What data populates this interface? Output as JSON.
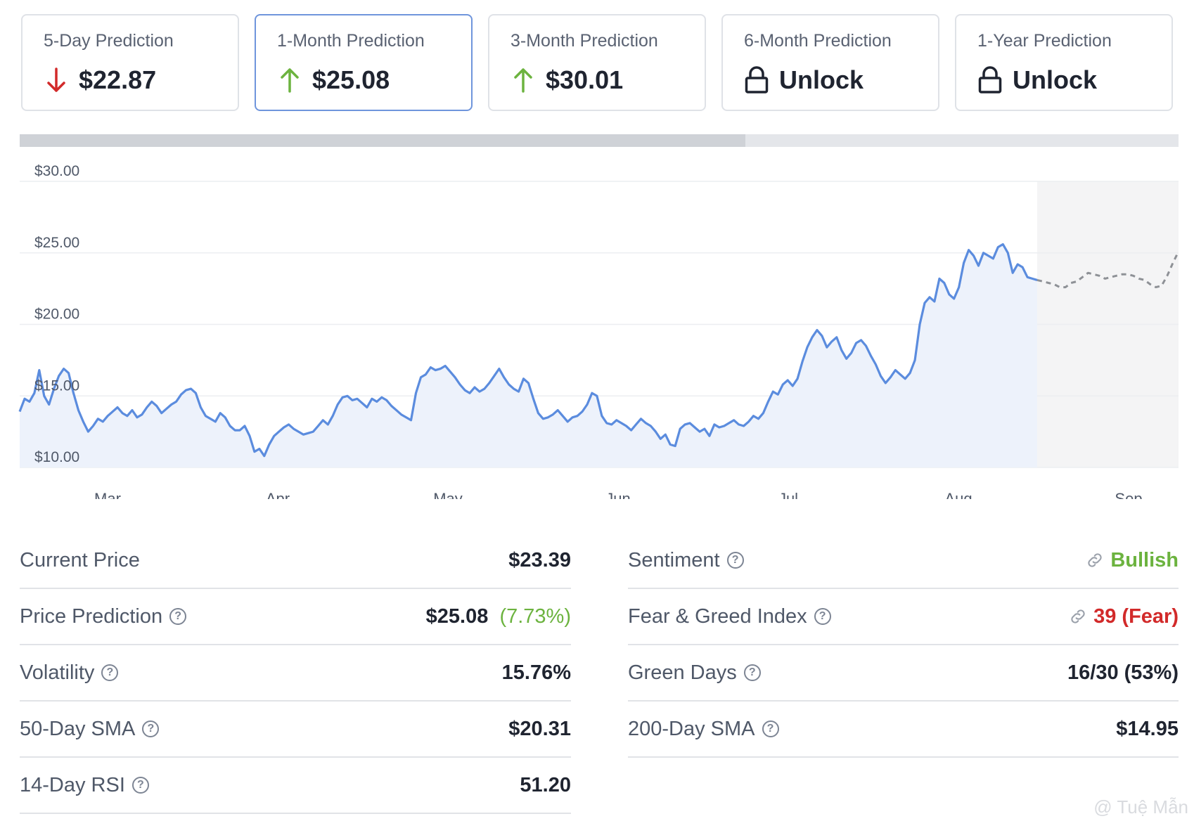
{
  "cards": [
    {
      "title": "5-Day Prediction",
      "value": "$22.87",
      "icon": "arrow-down-icon",
      "color": "#d22a2a"
    },
    {
      "title": "1-Month Prediction",
      "value": "$25.08",
      "icon": "arrow-up-icon",
      "color": "#6cb33f",
      "active": true
    },
    {
      "title": "3-Month Prediction",
      "value": "$30.01",
      "icon": "arrow-up-icon",
      "color": "#6cb33f"
    },
    {
      "title": "6-Month Prediction",
      "value": "Unlock",
      "icon": "lock-icon"
    },
    {
      "title": "1-Year Prediction",
      "value": "Unlock",
      "icon": "lock-icon"
    }
  ],
  "chart_data": {
    "type": "line",
    "ylim": [
      10,
      30
    ],
    "y_ticks": [
      "$30.00",
      "$25.00",
      "$20.00",
      "$15.00",
      "$10.00"
    ],
    "x_ticks": [
      "Mar",
      "Apr",
      "May",
      "Jun",
      "Jul",
      "Aug",
      "Sep"
    ],
    "series": [
      {
        "values": [
          13.9,
          14.8,
          14.6,
          15.2,
          16.8,
          15.0,
          14.4,
          15.5,
          16.4,
          16.9,
          16.6,
          15.2,
          14.0,
          13.2,
          12.5,
          12.9,
          13.4,
          13.2,
          13.6,
          13.9,
          14.2,
          13.8,
          13.6,
          14.0,
          13.5,
          13.7,
          14.2,
          14.6,
          14.3,
          13.8,
          14.1,
          14.4,
          14.6,
          15.1,
          15.4,
          15.5,
          15.2,
          14.2,
          13.6,
          13.4,
          13.2,
          13.8,
          13.5,
          12.9,
          12.6,
          12.6,
          12.9,
          12.2,
          11.1,
          11.3,
          10.8,
          11.6,
          12.2,
          12.5,
          12.8,
          13.0,
          12.7,
          12.5,
          12.3,
          12.4,
          12.5,
          12.9,
          13.3,
          13.0,
          13.6,
          14.4,
          14.9,
          15.0,
          14.7,
          14.8,
          14.5,
          14.2,
          14.8,
          14.6,
          14.9,
          14.7,
          14.3,
          14.0,
          13.7,
          13.5,
          13.3,
          15.2,
          16.3,
          16.5,
          17.0,
          16.8,
          16.9,
          17.1,
          16.7,
          16.3,
          15.8,
          15.4,
          15.2,
          15.6,
          15.3,
          15.5,
          15.9,
          16.4,
          16.9,
          16.3,
          15.8,
          15.5,
          15.3,
          16.2,
          15.9,
          14.8,
          13.8,
          13.4,
          13.5,
          13.7,
          14.0,
          13.6,
          13.2,
          13.5,
          13.6,
          13.9,
          14.4,
          15.2,
          15.0,
          13.6,
          13.1,
          13.0,
          13.3,
          13.1,
          12.9,
          12.6,
          13.0,
          13.4,
          13.1,
          12.9,
          12.5,
          12.0,
          12.3,
          11.6,
          11.5,
          12.7,
          13.0,
          13.1,
          12.8,
          12.5,
          12.7,
          12.2,
          13.0,
          12.8,
          12.9,
          13.1,
          13.3,
          13.0,
          12.9,
          13.2,
          13.6,
          13.4,
          13.8,
          14.6,
          15.3,
          15.1,
          15.8,
          16.1,
          15.7,
          16.2,
          17.4,
          18.4,
          19.1,
          19.6,
          19.2,
          18.4,
          18.8,
          19.1,
          18.2,
          17.6,
          18.0,
          18.7,
          18.9,
          18.5,
          17.8,
          17.2,
          16.4,
          15.9,
          16.3,
          16.8,
          16.5,
          16.2,
          16.6,
          17.5,
          20.0,
          21.5,
          21.9,
          21.6,
          23.2,
          22.9,
          22.1,
          21.8,
          22.6,
          24.3,
          25.2,
          24.8,
          24.1,
          25.0,
          24.8,
          24.6,
          25.4,
          25.6,
          25.0,
          23.6,
          24.2,
          24.0,
          23.3,
          23.2,
          23.1
        ]
      },
      {
        "values": [
          23.1,
          23.0,
          22.9,
          22.8,
          22.6,
          22.6,
          22.9,
          23.0,
          23.3,
          23.6,
          23.5,
          23.4,
          23.2,
          23.3,
          23.4,
          23.5,
          23.5,
          23.4,
          23.2,
          23.1,
          22.8,
          22.6,
          22.7,
          23.4,
          24.3,
          25.1
        ]
      }
    ]
  },
  "stats_left": [
    {
      "label": "Current Price",
      "value": "$23.39",
      "help": false
    },
    {
      "label": "Price Prediction",
      "value": "$25.08",
      "extra": "(7.73%)",
      "help": true
    },
    {
      "label": "Volatility",
      "value": "15.76%",
      "help": true
    },
    {
      "label": "50-Day SMA",
      "value": "$20.31",
      "help": true
    },
    {
      "label": "14-Day RSI",
      "value": "51.20",
      "help": true
    }
  ],
  "stats_right": [
    {
      "label": "Sentiment",
      "value": "Bullish",
      "help": true,
      "link": true,
      "color": "#6cb33f"
    },
    {
      "label": "Fear & Greed Index",
      "value": "39 (Fear)",
      "help": true,
      "link": true,
      "color": "#d22a2a"
    },
    {
      "label": "Green Days",
      "value": "16/30 (53%)",
      "help": true
    },
    {
      "label": "200-Day SMA",
      "value": "$14.95",
      "help": true
    }
  ],
  "help_glyph": "?",
  "watermark": "@ Tuệ Mẫn",
  "colors": {
    "line": "#5b8cde",
    "area": "#edf2fb",
    "forecast": "#8e9196",
    "forecast_bg": "#f4f4f5",
    "grid": "#eceef1"
  }
}
